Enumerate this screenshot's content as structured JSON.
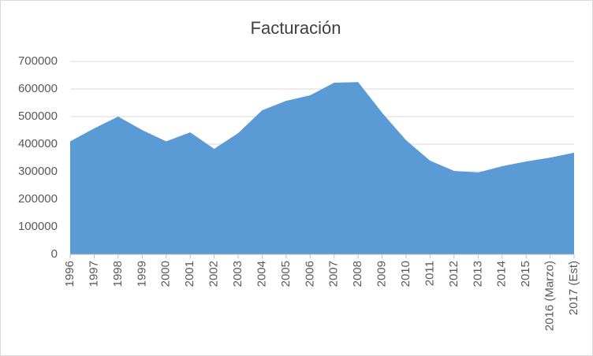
{
  "chart_data": {
    "type": "area",
    "title": "Facturación",
    "categories": [
      "1996",
      "1997",
      "1998",
      "1999",
      "2000",
      "2001",
      "2002",
      "2003",
      "2004",
      "2005",
      "2006",
      "2007",
      "2008",
      "2009",
      "2010",
      "2011",
      "2012",
      "2013",
      "2014",
      "2015",
      "2016 (Marzo)",
      "2017 (Est)"
    ],
    "values": [
      410000,
      457000,
      500000,
      451000,
      410000,
      443000,
      383000,
      440000,
      523000,
      557000,
      577000,
      623000,
      625000,
      514000,
      414000,
      340000,
      303000,
      297000,
      320000,
      337000,
      351000,
      369000
    ],
    "color": "#5b9bd5",
    "ylim": [
      0,
      700000
    ],
    "yticks": [
      0,
      100000,
      200000,
      300000,
      400000,
      500000,
      600000,
      700000
    ],
    "grid": true
  }
}
